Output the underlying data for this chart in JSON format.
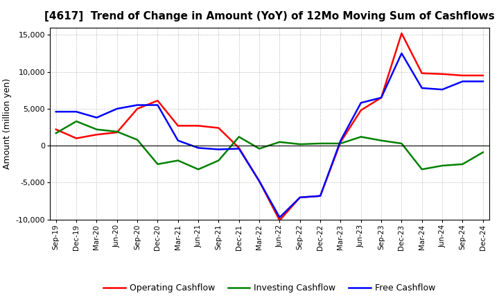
{
  "title": "[4617]  Trend of Change in Amount (YoY) of 12Mo Moving Sum of Cashflows",
  "ylabel": "Amount (million yen)",
  "x_labels": [
    "Sep-19",
    "Dec-19",
    "Mar-20",
    "Jun-20",
    "Sep-20",
    "Dec-20",
    "Mar-21",
    "Jun-21",
    "Sep-21",
    "Dec-21",
    "Mar-22",
    "Jun-22",
    "Sep-22",
    "Dec-22",
    "Mar-23",
    "Jun-23",
    "Sep-23",
    "Dec-23",
    "Mar-24",
    "Jun-24",
    "Sep-24",
    "Dec-24"
  ],
  "operating": [
    2200,
    1000,
    1500,
    1800,
    5000,
    6100,
    2700,
    2700,
    2400,
    -300,
    -4800,
    -10100,
    -7000,
    -6800,
    500,
    4800,
    6500,
    15200,
    9800,
    9700,
    9500,
    9500
  ],
  "investing": [
    1700,
    3300,
    2200,
    1900,
    800,
    -2500,
    -2000,
    -3200,
    -2000,
    1200,
    -400,
    500,
    200,
    300,
    300,
    1200,
    700,
    300,
    -3200,
    -2700,
    -2500,
    -900
  ],
  "free": [
    4600,
    4600,
    3800,
    5000,
    5500,
    5500,
    700,
    -300,
    -500,
    -400,
    -4800,
    -9700,
    -7000,
    -6800,
    700,
    5800,
    6500,
    12500,
    7800,
    7600,
    8700,
    8700
  ],
  "operating_color": "#ff0000",
  "investing_color": "#008000",
  "free_color": "#0000ff",
  "ylim": [
    -10000,
    16000
  ],
  "yticks": [
    -10000,
    -5000,
    0,
    5000,
    10000,
    15000
  ],
  "background_color": "#ffffff",
  "grid_color": "#b0b0b0",
  "legend_labels": [
    "Operating Cashflow",
    "Investing Cashflow",
    "Free Cashflow"
  ],
  "title_fontsize": 11,
  "axis_fontsize": 9,
  "legend_fontsize": 9,
  "linewidth": 1.8
}
